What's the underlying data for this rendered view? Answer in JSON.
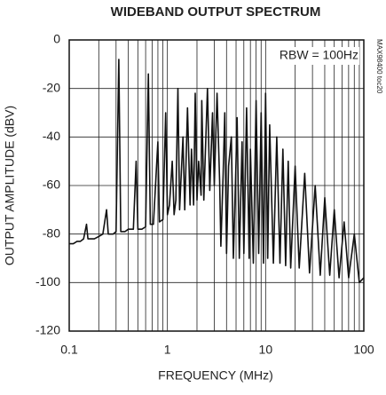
{
  "chart_data": {
    "type": "line",
    "title": "WIDEBAND OUTPUT SPECTRUM",
    "xlabel": "FREQUENCY (MHz)",
    "ylabel": "OUTPUT AMPLITUDE (dBV)",
    "annotations": [
      "RBW = 100Hz",
      "MAX98400 toc20"
    ],
    "xscale": "log",
    "xlim": [
      0.1,
      100
    ],
    "xticks": [
      0.1,
      1,
      10,
      100
    ],
    "xminorticks": [
      0.2,
      0.3,
      0.4,
      0.5,
      0.6,
      0.7,
      0.8,
      0.9,
      2,
      3,
      4,
      5,
      6,
      7,
      8,
      9,
      20,
      30,
      40,
      50,
      60,
      70,
      80,
      90
    ],
    "ylim": [
      -120,
      0
    ],
    "yticks": [
      -120,
      -100,
      -80,
      -60,
      -40,
      -20,
      0
    ],
    "grid": true,
    "series": [
      {
        "color": "#111111",
        "x": [
          0.1,
          0.11,
          0.12,
          0.13,
          0.14,
          0.15,
          0.155,
          0.18,
          0.2,
          0.22,
          0.24,
          0.25,
          0.28,
          0.3,
          0.32,
          0.335,
          0.37,
          0.4,
          0.45,
          0.48,
          0.5,
          0.55,
          0.6,
          0.64,
          0.67,
          0.72,
          0.8,
          0.83,
          0.9,
          0.96,
          1.0,
          1.05,
          1.12,
          1.17,
          1.22,
          1.28,
          1.33,
          1.44,
          1.5,
          1.6,
          1.7,
          1.76,
          1.85,
          1.92,
          2.0,
          2.08,
          2.2,
          2.24,
          2.35,
          2.56,
          2.7,
          2.88,
          3.0,
          3.2,
          3.4,
          3.5,
          3.7,
          3.84,
          4.0,
          4.2,
          4.48,
          4.7,
          5.0,
          5.12,
          5.4,
          5.76,
          6.0,
          6.4,
          6.8,
          7.0,
          7.5,
          8.0,
          8.5,
          9.0,
          9.5,
          10,
          10.5,
          11,
          12,
          13,
          14,
          15,
          16,
          17,
          18,
          20,
          22,
          25,
          28,
          32,
          36,
          40,
          45,
          50,
          56,
          63,
          70,
          80,
          90,
          100
        ],
        "values": [
          -84,
          -84,
          -83,
          -83,
          -82,
          -76,
          -82,
          -82,
          -81,
          -80,
          -70,
          -80,
          -80,
          -79,
          -8,
          -79,
          -79,
          -78,
          -78,
          -50,
          -78,
          -78,
          -77,
          -14,
          -76,
          -76,
          -42,
          -75,
          -74,
          -30,
          -72,
          -68,
          -50,
          -72,
          -66,
          -20,
          -70,
          -40,
          -70,
          -28,
          -68,
          -45,
          -68,
          -22,
          -66,
          -50,
          -64,
          -25,
          -66,
          -20,
          -62,
          -30,
          -60,
          -22,
          -58,
          -85,
          -55,
          -30,
          -88,
          -52,
          -40,
          -90,
          -50,
          -32,
          -90,
          -42,
          -88,
          -28,
          -90,
          -45,
          -92,
          -25,
          -88,
          -30,
          -92,
          -22,
          -90,
          -35,
          -92,
          -40,
          -92,
          -45,
          -93,
          -50,
          -94,
          -52,
          -94,
          -55,
          -96,
          -60,
          -97,
          -65,
          -97,
          -70,
          -98,
          -75,
          -98,
          -80,
          -100,
          -98
        ]
      }
    ]
  }
}
